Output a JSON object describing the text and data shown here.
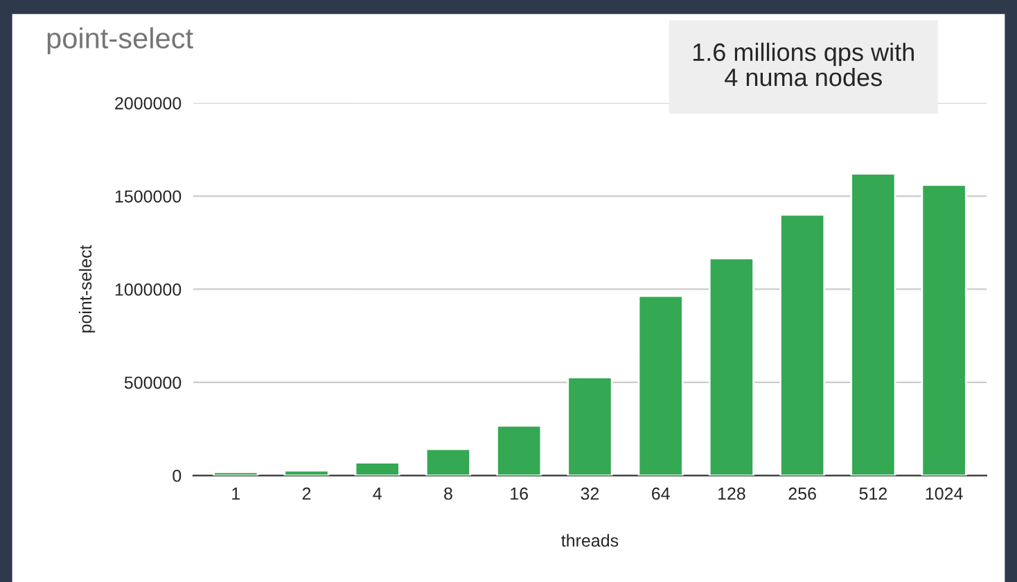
{
  "chart_data": {
    "type": "bar",
    "title": "point-select",
    "xlabel": "threads",
    "ylabel": "point-select",
    "categories": [
      "1",
      "2",
      "4",
      "8",
      "16",
      "32",
      "64",
      "128",
      "256",
      "512",
      "1024"
    ],
    "values": [
      18000,
      27000,
      69000,
      142000,
      268000,
      527000,
      964000,
      1166000,
      1400000,
      1621000,
      1560000
    ],
    "color": "#34a853",
    "ylim": [
      0,
      2000000
    ],
    "yticks": [
      0,
      500000,
      1000000,
      1500000,
      2000000
    ],
    "grid": "y",
    "legend": false,
    "annotations": [
      "1.6 millions qps with\n4 numa nodes"
    ]
  }
}
